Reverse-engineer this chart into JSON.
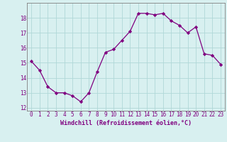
{
  "x": [
    0,
    1,
    2,
    3,
    4,
    5,
    6,
    7,
    8,
    9,
    10,
    11,
    12,
    13,
    14,
    15,
    16,
    17,
    18,
    19,
    20,
    21,
    22,
    23
  ],
  "y": [
    15.1,
    14.5,
    13.4,
    13.0,
    13.0,
    12.8,
    12.4,
    13.0,
    14.4,
    15.7,
    15.9,
    16.5,
    17.1,
    18.3,
    18.3,
    18.2,
    18.3,
    17.8,
    17.5,
    17.0,
    17.4,
    15.6,
    15.5,
    14.9
  ],
  "line_color": "#800080",
  "marker": "D",
  "marker_size": 2.2,
  "bg_color": "#d8f0f0",
  "grid_color": "#b0d8d8",
  "xlabel": "Windchill (Refroidissement éolien,°C)",
  "xlabel_fontsize": 6.0,
  "ylim": [
    11.8,
    19.0
  ],
  "xlim": [
    -0.5,
    23.5
  ],
  "yticks": [
    12,
    13,
    14,
    15,
    16,
    17,
    18
  ],
  "xticks": [
    0,
    1,
    2,
    3,
    4,
    5,
    6,
    7,
    8,
    9,
    10,
    11,
    12,
    13,
    14,
    15,
    16,
    17,
    18,
    19,
    20,
    21,
    22,
    23
  ],
  "tick_fontsize": 5.5,
  "spine_color": "#808080",
  "line_width": 0.9
}
